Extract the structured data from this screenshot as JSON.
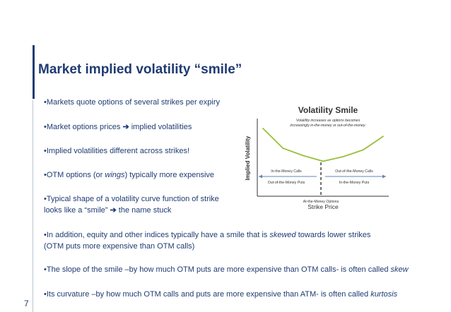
{
  "slide": {
    "title": "Market implied volatility “smile”",
    "page_number": "7",
    "accent_color": "#1f3b72"
  },
  "bullets": [
    {
      "line1": "•Markets quote options of several strikes per expiry"
    },
    {
      "part1": "•Market options prices ",
      "arrow": "➔",
      "part2": " implied volatilities"
    },
    {
      "line1": "•Implied volatilities different across strikes!"
    },
    {
      "part1": "•OTM options (or ",
      "em": "wings",
      "part2": ") typically more expensive"
    },
    {
      "line1": "•Typical shape of a volatility curve function of strike",
      "line2_part1": "looks like a “smile” ",
      "arrow": "➔",
      "line2_part2": " the name stuck"
    },
    {
      "part1": "•In addition, equity and other indices typically have a smile that is ",
      "em": "skewed",
      "part2": " towards lower strikes",
      "line2": "(OTM puts more expensive than OTM calls)"
    },
    {
      "part1": "•The slope of the smile –by how much OTM puts are more expensive than OTM calls- is often called ",
      "em": "skew"
    },
    {
      "part1": "•Its curvature –by how much OTM calls and puts are more expensive than ATM- is often called ",
      "em": "kurtosis"
    }
  ],
  "chart_data": {
    "type": "line",
    "title": "Volatility Smile",
    "note_line1": "Volatility increases as options becomes",
    "note_line2": "increasingly in-the-money or out-of-the-money.",
    "xlabel": "Strike Price",
    "ylabel": "Implied Volatility",
    "atm_label": "At-the-Money Options",
    "left_labels": [
      "In-the-Money Calls",
      "Out-of-the-Money Puts"
    ],
    "right_labels": [
      "Out-of-the-Money Calls",
      "In-the-Money Puts"
    ],
    "line_color": "#9abf3e",
    "x": [
      0,
      1,
      2,
      3,
      4,
      5,
      6
    ],
    "values": [
      10,
      6.5,
      5.2,
      4.2,
      5.0,
      6.2,
      8.6
    ]
  }
}
